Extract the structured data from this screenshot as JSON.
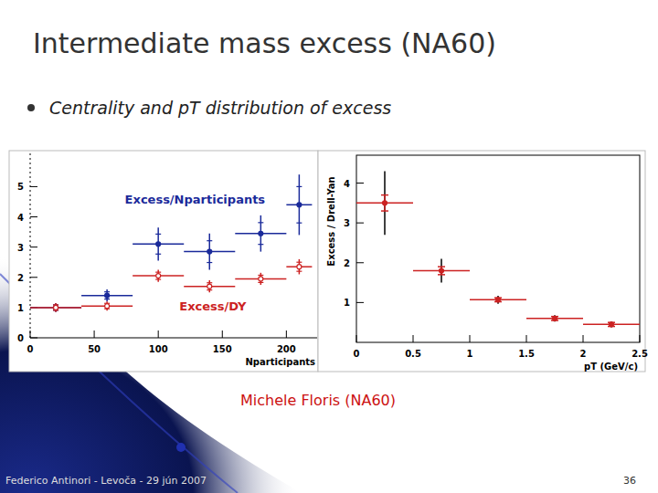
{
  "slide": {
    "title": "Intermediate mass excess (NA60)",
    "bullet": "Centrality and pT distribution of excess",
    "credit": "Michele Floris (NA60)",
    "footer": "Federico Antinori - Levoča - 29 jún 2007",
    "page": "36"
  },
  "chart_data": [
    {
      "type": "scatter",
      "x_label": "Nparticipants",
      "x": [
        20,
        60,
        100,
        140,
        180,
        210
      ],
      "xlim": [
        0,
        224
      ],
      "xticks": [
        0,
        50,
        100,
        150,
        200
      ],
      "ylim": [
        0,
        6.1
      ],
      "yticks": [
        0,
        1,
        2,
        3,
        4,
        5
      ],
      "marker": "circle",
      "series": [
        {
          "name": "Excess/Nparticipants",
          "color": "#1a2a9a",
          "values": [
            1.0,
            1.4,
            3.1,
            2.85,
            3.45,
            4.4
          ],
          "errors": [
            0.15,
            0.2,
            0.55,
            0.6,
            0.6,
            1.0
          ],
          "x_errors": [
            20,
            20,
            20,
            20,
            20,
            10
          ]
        },
        {
          "name": "Excess/DY",
          "color": "#cc2222",
          "values": [
            1.0,
            1.05,
            2.05,
            1.7,
            1.95,
            2.35
          ],
          "errors": [
            0.15,
            0.15,
            0.2,
            0.2,
            0.2,
            0.25
          ],
          "x_errors": [
            20,
            20,
            20,
            20,
            20,
            10
          ]
        }
      ]
    },
    {
      "type": "scatter",
      "x_label": "pT (GeV/c)",
      "y_label": "Excess / Drell-Yan",
      "x": [
        0.25,
        0.75,
        1.25,
        1.75,
        2.25
      ],
      "xlim": [
        0,
        2.5
      ],
      "xticks": [
        0,
        0.5,
        1,
        1.5,
        2,
        2.5
      ],
      "ylim": [
        0,
        4.7
      ],
      "yticks": [
        1,
        2,
        3,
        4
      ],
      "marker": "circle",
      "series": [
        {
          "name": "Excess / Drell-Yan",
          "color": "#cc2222",
          "values": [
            3.5,
            1.8,
            1.07,
            0.6,
            0.45
          ],
          "errors": [
            0.8,
            0.3,
            0.1,
            0.08,
            0.07
          ],
          "syst_errors": [
            0.2,
            0.1,
            0.05,
            0.05,
            0.05
          ],
          "x_errors": [
            0.25,
            0.25,
            0.25,
            0.25,
            0.25
          ]
        }
      ]
    }
  ]
}
